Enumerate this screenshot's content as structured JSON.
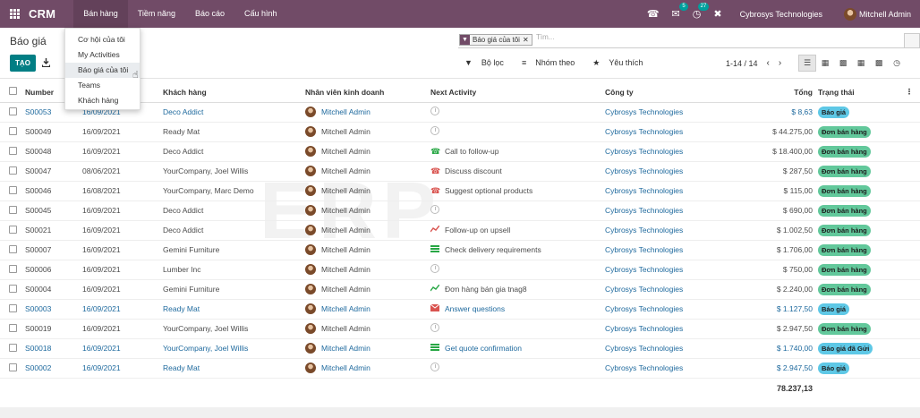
{
  "app": {
    "name": "CRM"
  },
  "topmenu": [
    "Bán hàng",
    "Tiềm năng",
    "Báo cáo",
    "Cấu hình"
  ],
  "systray": {
    "chat_count": "5",
    "activity_count": "27",
    "company": "Cybrosys Technologies",
    "user": "Mitchell Admin"
  },
  "breadcrumb": "Báo giá",
  "create_label": "TẠO",
  "search": {
    "facet_label": "Báo giá của tôi",
    "placeholder": "Tìm..."
  },
  "filters": {
    "filter": "Bộ lọc",
    "group_by": "Nhóm theo",
    "favorites": "Yêu thích"
  },
  "pager": "1-14 / 14",
  "dropdown": [
    "Cơ hội của tôi",
    "My Activities",
    "Báo giá của tôi",
    "Teams",
    "Khách hàng"
  ],
  "table": {
    "headers": {
      "number": "Number",
      "date": "",
      "customer": "Khách hàng",
      "salesperson": "Nhân viên kinh doanh",
      "next_activity": "Next Activity",
      "company": "Công ty",
      "total": "Tổng",
      "status": "Trạng thái"
    },
    "rows": [
      {
        "number": "S00053",
        "date": "16/09/2021",
        "customer": "Deco Addict",
        "salesperson": "Mitchell Admin",
        "activity": "",
        "activity_icon": "clock-icon",
        "company": "Cybrosys Technologies",
        "total": "$ 8,63",
        "status": "Báo giá",
        "status_kind": "quote",
        "linked": true
      },
      {
        "number": "S00049",
        "date": "16/09/2021",
        "customer": "Ready Mat",
        "salesperson": "Mitchell Admin",
        "activity": "",
        "activity_icon": "clock-icon",
        "company": "Cybrosys Technologies",
        "total": "$ 44.275,00",
        "status": "Đơn bán hàng",
        "status_kind": "sale",
        "linked": false
      },
      {
        "number": "S00048",
        "date": "16/09/2021",
        "customer": "Deco Addict",
        "salesperson": "Mitchell Admin",
        "activity": "Call to follow-up",
        "activity_icon": "phone-icon",
        "company": "Cybrosys Technologies",
        "total": "$ 18.400,00",
        "status": "Đơn bán hàng",
        "status_kind": "sale",
        "linked": false
      },
      {
        "number": "S00047",
        "date": "08/06/2021",
        "customer": "YourCompany, Joel Willis",
        "salesperson": "Mitchell Admin",
        "activity": "Discuss discount",
        "activity_icon": "phone-red-icon",
        "company": "Cybrosys Technologies",
        "total": "$ 287,50",
        "status": "Đơn bán hàng",
        "status_kind": "sale",
        "linked": false
      },
      {
        "number": "S00046",
        "date": "16/08/2021",
        "customer": "YourCompany, Marc Demo",
        "salesperson": "Mitchell Admin",
        "activity": "Suggest optional products",
        "activity_icon": "phone-red-icon",
        "company": "Cybrosys Technologies",
        "total": "$ 115,00",
        "status": "Đơn bán hàng",
        "status_kind": "sale",
        "linked": false
      },
      {
        "number": "S00045",
        "date": "16/09/2021",
        "customer": "Deco Addict",
        "salesperson": "Mitchell Admin",
        "activity": "",
        "activity_icon": "clock-icon",
        "company": "Cybrosys Technologies",
        "total": "$ 690,00",
        "status": "Đơn bán hàng",
        "status_kind": "sale",
        "linked": false
      },
      {
        "number": "S00021",
        "date": "16/09/2021",
        "customer": "Deco Addict",
        "salesperson": "Mitchell Admin",
        "activity": "Follow-up on upsell",
        "activity_icon": "chart-red-icon",
        "company": "Cybrosys Technologies",
        "total": "$ 1.002,50",
        "status": "Đơn bán hàng",
        "status_kind": "sale",
        "linked": false
      },
      {
        "number": "S00007",
        "date": "16/09/2021",
        "customer": "Gemini Furniture",
        "salesperson": "Mitchell Admin",
        "activity": "Check delivery requirements",
        "activity_icon": "list-green-icon",
        "company": "Cybrosys Technologies",
        "total": "$ 1.706,00",
        "status": "Đơn bán hàng",
        "status_kind": "sale",
        "linked": false
      },
      {
        "number": "S00006",
        "date": "16/09/2021",
        "customer": "Lumber Inc",
        "salesperson": "Mitchell Admin",
        "activity": "",
        "activity_icon": "clock-icon",
        "company": "Cybrosys Technologies",
        "total": "$ 750,00",
        "status": "Đơn bán hàng",
        "status_kind": "sale",
        "linked": false
      },
      {
        "number": "S00004",
        "date": "16/09/2021",
        "customer": "Gemini Furniture",
        "salesperson": "Mitchell Admin",
        "activity": "Đơn hàng bán gia tnag8",
        "activity_icon": "chart-green-icon",
        "company": "Cybrosys Technologies",
        "total": "$ 2.240,00",
        "status": "Đơn bán hàng",
        "status_kind": "sale",
        "linked": false
      },
      {
        "number": "S00003",
        "date": "16/09/2021",
        "customer": "Ready Mat",
        "salesperson": "Mitchell Admin",
        "activity": "Answer questions",
        "activity_icon": "envelope-red-icon",
        "company": "Cybrosys Technologies",
        "total": "$ 1.127,50",
        "status": "Báo giá",
        "status_kind": "quote",
        "linked": true
      },
      {
        "number": "S00019",
        "date": "16/09/2021",
        "customer": "YourCompany, Joel Willis",
        "salesperson": "Mitchell Admin",
        "activity": "",
        "activity_icon": "clock-icon",
        "company": "Cybrosys Technologies",
        "total": "$ 2.947,50",
        "status": "Đơn bán hàng",
        "status_kind": "sale",
        "linked": false
      },
      {
        "number": "S00018",
        "date": "16/09/2021",
        "customer": "YourCompany, Joel Willis",
        "salesperson": "Mitchell Admin",
        "activity": "Get quote confirmation",
        "activity_icon": "list-green-icon",
        "company": "Cybrosys Technologies",
        "total": "$ 1.740,00",
        "status": "Báo giá đã Gửi",
        "status_kind": "quote",
        "linked": true
      },
      {
        "number": "S00002",
        "date": "16/09/2021",
        "customer": "Ready Mat",
        "salesperson": "Mitchell Admin",
        "activity": "",
        "activity_icon": "clock-icon",
        "company": "Cybrosys Technologies",
        "total": "$ 2.947,50",
        "status": "Báo giá",
        "status_kind": "quote",
        "linked": true
      }
    ],
    "grand_total": "78.237,13"
  },
  "colors": {
    "brand": "#714b67",
    "primary": "#017e84",
    "link": "#1f6a9e",
    "quote_badge": "#5ec8e6",
    "sale_badge": "#62c89b"
  }
}
